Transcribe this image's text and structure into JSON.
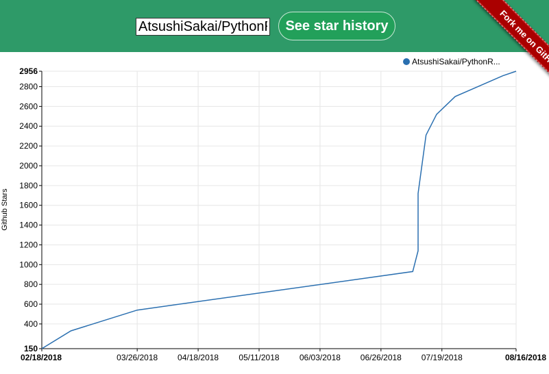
{
  "header": {
    "repo_input_value": "AtsushiSakai/PythonR",
    "button_label": "See star history"
  },
  "ribbon": {
    "label": "Fork me on GitHub"
  },
  "colors": {
    "header": "#2e9a68",
    "button": "#22a05a",
    "line": "#2a6fb0",
    "ribbon": "#aa0000"
  },
  "chart_data": {
    "type": "line",
    "ylabel": "Github Stars",
    "legend": {
      "placement": "top-right",
      "label": "AtsushiSakai/PythonR..."
    },
    "grid": true,
    "ylim": [
      150,
      2956
    ],
    "y_ticks": [
      "150",
      "400",
      "600",
      "800",
      "1000",
      "1200",
      "1400",
      "1600",
      "1800",
      "2000",
      "2200",
      "2400",
      "2600",
      "2800",
      "2956"
    ],
    "xlim": [
      "2018-02-18",
      "2018-08-16"
    ],
    "x_ticks": [
      {
        "date": "2018-02-18",
        "label": "02/18/2018",
        "bold": true
      },
      {
        "date": "2018-03-26",
        "label": "03/26/2018",
        "bold": false
      },
      {
        "date": "2018-04-18",
        "label": "04/18/2018",
        "bold": false
      },
      {
        "date": "2018-05-11",
        "label": "05/11/2018",
        "bold": false
      },
      {
        "date": "2018-06-03",
        "label": "06/03/2018",
        "bold": false
      },
      {
        "date": "2018-06-26",
        "label": "06/26/2018",
        "bold": false
      },
      {
        "date": "2018-07-19",
        "label": "07/19/2018",
        "bold": false
      },
      {
        "date": "2018-08-16",
        "label": "08/16/2018",
        "bold": true
      }
    ],
    "series": [
      {
        "name": "AtsushiSakai/PythonR...",
        "points": [
          {
            "x": "2018-02-18",
            "y": 150
          },
          {
            "x": "2018-03-01",
            "y": 330
          },
          {
            "x": "2018-03-26",
            "y": 540
          },
          {
            "x": "2018-07-08",
            "y": 930
          },
          {
            "x": "2018-07-10",
            "y": 1140
          },
          {
            "x": "2018-07-10",
            "y": 1720
          },
          {
            "x": "2018-07-13",
            "y": 2310
          },
          {
            "x": "2018-07-17",
            "y": 2520
          },
          {
            "x": "2018-07-24",
            "y": 2700
          },
          {
            "x": "2018-08-11",
            "y": 2910
          },
          {
            "x": "2018-08-16",
            "y": 2956
          }
        ]
      }
    ]
  }
}
